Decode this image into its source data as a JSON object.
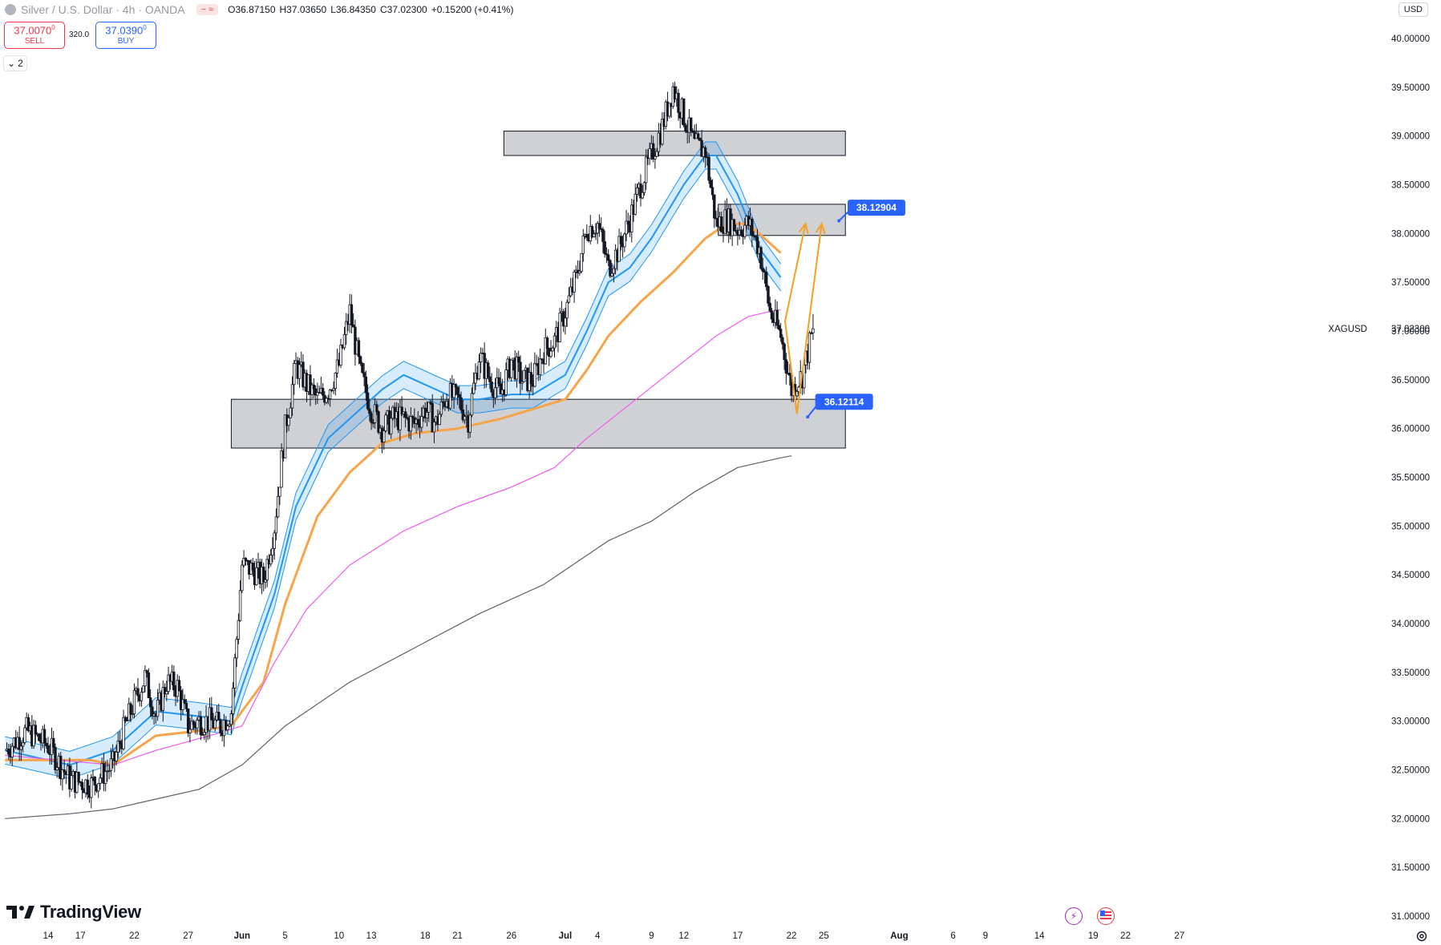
{
  "header": {
    "symbol_title": "Silver / U.S. Dollar · 4h · OANDA",
    "ohlc": [
      {
        "k": "O",
        "v": "36.87150"
      },
      {
        "k": "H",
        "v": "37.03650"
      },
      {
        "k": "L",
        "v": "36.84350"
      },
      {
        "k": "C",
        "v": "37.02300"
      },
      {
        "k": "",
        "v": "+0.15200 (+0.41%)"
      }
    ],
    "sell_price": "37.0070",
    "sell_sup": "0",
    "sell_label": "SELL",
    "buy_price": "37.0390",
    "buy_sup": "0",
    "buy_label": "BUY",
    "spread": "320.0",
    "indicator_count": "2",
    "currency": "USD"
  },
  "branding": {
    "logo_text": "TradingView"
  },
  "chart_data": {
    "type": "candlestick",
    "symbol_label": "XAGUSD",
    "last_price": "37.02300",
    "y_axis": {
      "min": 31.0,
      "max": 40.0,
      "ticks": [
        "40.00000",
        "39.50000",
        "39.00000",
        "38.50000",
        "38.00000",
        "37.50000",
        "37.00000",
        "36.50000",
        "36.00000",
        "35.50000",
        "35.00000",
        "34.50000",
        "34.00000",
        "33.50000",
        "33.00000",
        "32.50000",
        "32.00000",
        "31.50000",
        "31.00000"
      ]
    },
    "x_axis": {
      "start_day": 0,
      "end_day": 107,
      "ticks": [
        {
          "label": "14",
          "day": 0
        },
        {
          "label": "17",
          "day": 3
        },
        {
          "label": "22",
          "day": 8
        },
        {
          "label": "27",
          "day": 13
        },
        {
          "label": "Jun",
          "day": 18,
          "bold": true
        },
        {
          "label": "5",
          "day": 22
        },
        {
          "label": "10",
          "day": 27
        },
        {
          "label": "13",
          "day": 30
        },
        {
          "label": "18",
          "day": 35
        },
        {
          "label": "21",
          "day": 38
        },
        {
          "label": "26",
          "day": 43
        },
        {
          "label": "Jul",
          "day": 48,
          "bold": true
        },
        {
          "label": "4",
          "day": 51
        },
        {
          "label": "9",
          "day": 56
        },
        {
          "label": "12",
          "day": 59
        },
        {
          "label": "17",
          "day": 64
        },
        {
          "label": "22",
          "day": 69
        },
        {
          "label": "25",
          "day": 72
        },
        {
          "label": "Aug",
          "day": 79,
          "bold": true
        },
        {
          "label": "6",
          "day": 84
        },
        {
          "label": "9",
          "day": 87
        },
        {
          "label": "14",
          "day": 92
        },
        {
          "label": "19",
          "day": 97
        },
        {
          "label": "22",
          "day": 100
        },
        {
          "label": "27",
          "day": 105
        }
      ]
    },
    "candle_segments": [
      [
        -4,
        32.7
      ],
      [
        -2,
        32.9
      ],
      [
        0,
        32.75
      ],
      [
        2,
        32.4
      ],
      [
        4,
        32.35
      ],
      [
        6,
        32.55
      ],
      [
        7,
        32.9
      ],
      [
        8,
        33.2
      ],
      [
        9,
        33.45
      ],
      [
        10,
        33.05
      ],
      [
        11,
        33.4
      ],
      [
        12,
        33.35
      ],
      [
        13,
        32.95
      ],
      [
        14,
        33.0
      ],
      [
        15,
        33.0
      ],
      [
        16,
        32.95
      ],
      [
        17,
        33.1
      ],
      [
        18,
        34.6
      ],
      [
        19,
        34.55
      ],
      [
        20,
        34.45
      ],
      [
        21,
        35.0
      ],
      [
        22,
        36.0
      ],
      [
        23,
        36.65
      ],
      [
        24,
        36.45
      ],
      [
        25,
        36.3
      ],
      [
        26,
        36.4
      ],
      [
        27,
        36.65
      ],
      [
        28,
        37.2
      ],
      [
        29,
        36.55
      ],
      [
        30,
        36.2
      ],
      [
        31,
        36.0
      ],
      [
        32,
        36.1
      ],
      [
        33,
        36.1
      ],
      [
        34,
        36.05
      ],
      [
        35,
        36.2
      ],
      [
        36,
        36.05
      ],
      [
        37,
        36.35
      ],
      [
        38,
        36.3
      ],
      [
        39,
        36.1
      ],
      [
        40,
        36.75
      ],
      [
        41,
        36.5
      ],
      [
        42,
        36.35
      ],
      [
        43,
        36.7
      ],
      [
        44,
        36.5
      ],
      [
        45,
        36.5
      ],
      [
        46,
        36.8
      ],
      [
        47,
        36.9
      ],
      [
        48,
        37.2
      ],
      [
        49,
        37.55
      ],
      [
        50,
        38.05
      ],
      [
        51,
        38.1
      ],
      [
        52,
        37.65
      ],
      [
        53,
        37.85
      ],
      [
        54,
        38.15
      ],
      [
        55,
        38.5
      ],
      [
        56,
        38.8
      ],
      [
        57,
        39.1
      ],
      [
        58,
        39.5
      ],
      [
        59,
        39.2
      ],
      [
        60,
        38.9
      ],
      [
        61,
        38.85
      ],
      [
        62,
        38.1
      ],
      [
        63,
        38.15
      ],
      [
        64,
        38.05
      ],
      [
        65,
        38.1
      ],
      [
        66,
        37.85
      ],
      [
        67,
        37.2
      ],
      [
        68,
        36.95
      ],
      [
        69,
        36.4
      ],
      [
        70,
        36.55
      ],
      [
        71,
        37.02
      ]
    ],
    "indicators": [
      {
        "name": "ma_fast",
        "color": "#2196f3",
        "points": [
          [
            -4,
            32.7
          ],
          [
            2,
            32.55
          ],
          [
            6,
            32.7
          ],
          [
            10,
            33.1
          ],
          [
            14,
            33.05
          ],
          [
            17,
            33.0
          ],
          [
            18,
            33.35
          ],
          [
            21,
            34.3
          ],
          [
            23,
            35.2
          ],
          [
            26,
            35.9
          ],
          [
            29,
            36.2
          ],
          [
            31,
            36.4
          ],
          [
            33,
            36.55
          ],
          [
            36,
            36.4
          ],
          [
            38,
            36.3
          ],
          [
            40,
            36.3
          ],
          [
            43,
            36.35
          ],
          [
            45,
            36.35
          ],
          [
            48,
            36.55
          ],
          [
            50,
            37.0
          ],
          [
            52,
            37.5
          ],
          [
            54,
            37.65
          ],
          [
            56,
            37.95
          ],
          [
            59,
            38.5
          ],
          [
            61,
            38.8
          ],
          [
            62,
            38.8
          ],
          [
            64,
            38.4
          ],
          [
            66,
            37.85
          ],
          [
            68,
            37.55
          ]
        ],
        "band": 0.14
      },
      {
        "name": "ma_mid",
        "color": "#f7a54a",
        "points": [
          [
            -4,
            32.6
          ],
          [
            4,
            32.6
          ],
          [
            6,
            32.55
          ],
          [
            10,
            32.85
          ],
          [
            14,
            32.9
          ],
          [
            17,
            32.95
          ],
          [
            20,
            33.4
          ],
          [
            22,
            34.2
          ],
          [
            25,
            35.1
          ],
          [
            28,
            35.55
          ],
          [
            31,
            35.85
          ],
          [
            34,
            35.95
          ],
          [
            38,
            36.0
          ],
          [
            42,
            36.1
          ],
          [
            45,
            36.2
          ],
          [
            48,
            36.3
          ],
          [
            50,
            36.6
          ],
          [
            52,
            36.95
          ],
          [
            55,
            37.3
          ],
          [
            58,
            37.6
          ],
          [
            61,
            37.95
          ],
          [
            63,
            38.1
          ],
          [
            65,
            38.1
          ],
          [
            67,
            37.9
          ],
          [
            68,
            37.8
          ]
        ]
      },
      {
        "name": "ma_slow",
        "color": "#f05af0",
        "points": [
          [
            -4,
            32.65
          ],
          [
            6,
            32.55
          ],
          [
            10,
            32.7
          ],
          [
            15,
            32.85
          ],
          [
            18,
            32.95
          ],
          [
            21,
            33.6
          ],
          [
            24,
            34.15
          ],
          [
            28,
            34.6
          ],
          [
            33,
            34.95
          ],
          [
            38,
            35.2
          ],
          [
            43,
            35.4
          ],
          [
            47,
            35.6
          ],
          [
            50,
            35.9
          ],
          [
            54,
            36.25
          ],
          [
            58,
            36.6
          ],
          [
            62,
            36.95
          ],
          [
            65,
            37.15
          ],
          [
            67,
            37.2
          ],
          [
            68,
            37.22
          ]
        ]
      },
      {
        "name": "ma_long",
        "color": "#5d606b",
        "points": [
          [
            -4,
            32.0
          ],
          [
            2,
            32.05
          ],
          [
            6,
            32.1
          ],
          [
            10,
            32.2
          ],
          [
            14,
            32.3
          ],
          [
            18,
            32.55
          ],
          [
            22,
            32.95
          ],
          [
            28,
            33.4
          ],
          [
            34,
            33.75
          ],
          [
            40,
            34.1
          ],
          [
            46,
            34.4
          ],
          [
            52,
            34.85
          ],
          [
            56,
            35.05
          ],
          [
            60,
            35.35
          ],
          [
            64,
            35.6
          ],
          [
            68,
            35.7
          ],
          [
            69,
            35.72
          ]
        ]
      }
    ],
    "zones": [
      {
        "name": "resistance-zone-top",
        "x1": 42.3,
        "x2": 74.0,
        "y1": 38.8,
        "y2": 39.05
      },
      {
        "name": "resistance-zone-mid",
        "x1": 62.2,
        "x2": 74.0,
        "y1": 37.98,
        "y2": 38.3
      },
      {
        "name": "support-zone",
        "x1": 17.0,
        "x2": 74.0,
        "y1": 35.8,
        "y2": 36.3
      }
    ],
    "projection_paths": [
      {
        "name": "projection-line-1",
        "color": "#f4a024",
        "points": [
          [
            68.4,
            37.1
          ],
          [
            70.3,
            38.1
          ]
        ]
      },
      {
        "name": "projection-line-2",
        "color": "#f4a024",
        "points": [
          [
            68.4,
            37.1
          ],
          [
            69.5,
            36.15
          ],
          [
            71.8,
            38.1
          ]
        ]
      }
    ],
    "price_labels": [
      {
        "name": "price-label-upper",
        "text": "38.12904",
        "x": 74.5,
        "y": 38.33,
        "anchor_x": 73.4,
        "anchor_y": 38.13
      },
      {
        "name": "price-label-lower",
        "text": "36.12114",
        "x": 71.5,
        "y": 36.34,
        "anchor_x": 70.5,
        "anchor_y": 36.12
      }
    ]
  }
}
